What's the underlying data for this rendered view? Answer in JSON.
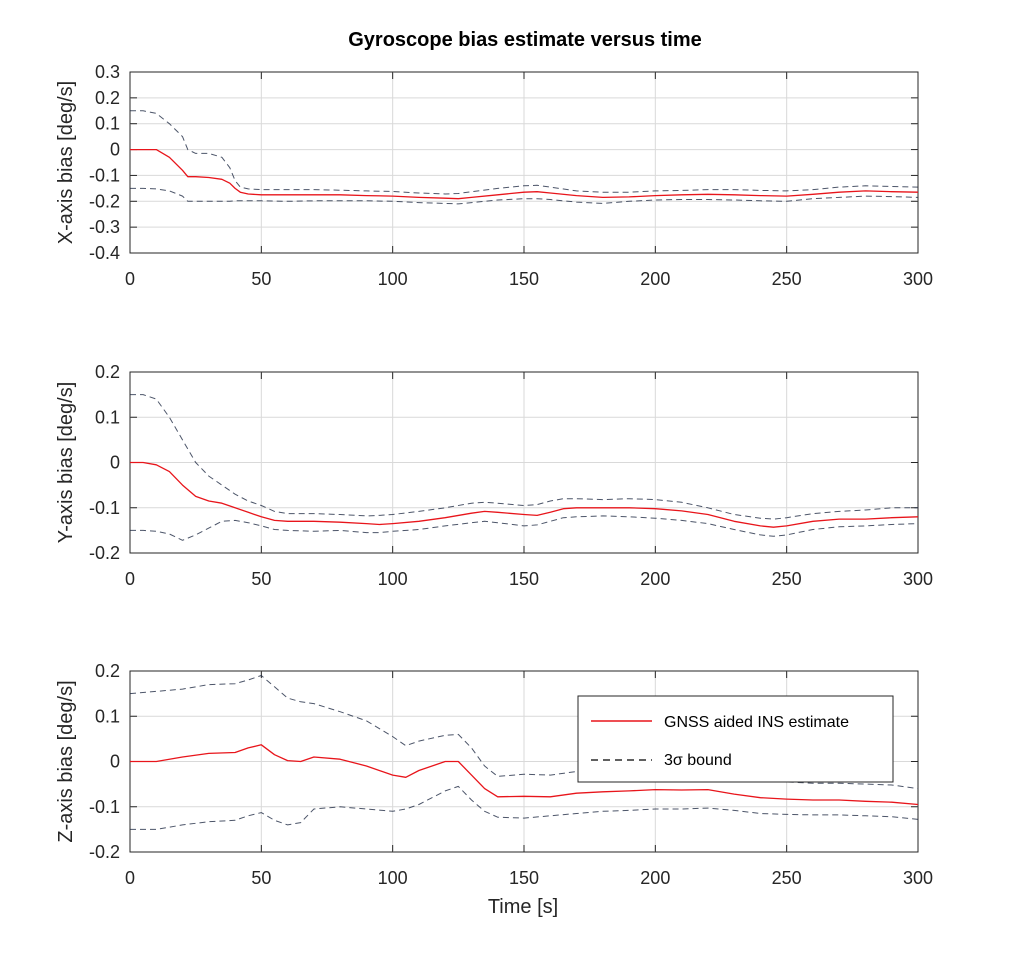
{
  "figure": {
    "title": "Gyroscope bias estimate versus time"
  },
  "legend": {
    "placement": "inside-upper-right-of-bottom-axes",
    "entries": [
      {
        "label": "GNSS aided INS estimate",
        "style": "solid",
        "color": "#e8151b"
      },
      {
        "label": "3σ bound",
        "style": "dashed",
        "color": "#000000"
      }
    ]
  },
  "colors": {
    "estimate": "#e8151b",
    "bound": "#1f2a44",
    "grid": "#d9d9d9",
    "axes": "#262626"
  },
  "chart_data": [
    {
      "type": "line",
      "id": "x-axis",
      "title": "Gyroscope bias estimate versus time",
      "xlabel": "",
      "ylabel": "X-axis bias [deg/s]",
      "xlim": [
        0,
        300
      ],
      "ylim": [
        -0.4,
        0.3
      ],
      "xticks": [
        0,
        50,
        100,
        150,
        200,
        250,
        300
      ],
      "yticks": [
        -0.4,
        -0.3,
        -0.2,
        -0.1,
        0,
        0.1,
        0.2,
        0.3
      ],
      "ytick_labels": [
        "-0.4",
        "-0.3",
        "-0.2",
        "-0.1",
        "0",
        "0.1",
        "0.2",
        "0.3"
      ],
      "grid": true,
      "x": [
        0,
        5,
        10,
        15,
        20,
        22,
        25,
        30,
        35,
        38,
        40,
        42,
        45,
        50,
        60,
        70,
        80,
        90,
        100,
        110,
        120,
        125,
        130,
        140,
        150,
        155,
        160,
        170,
        180,
        190,
        200,
        210,
        220,
        230,
        240,
        250,
        260,
        270,
        280,
        290,
        300
      ],
      "series": [
        {
          "name": "GNSS aided INS estimate",
          "role": "estimate",
          "values": [
            0,
            0,
            0,
            -0.03,
            -0.08,
            -0.105,
            -0.105,
            -0.108,
            -0.115,
            -0.13,
            -0.15,
            -0.165,
            -0.172,
            -0.175,
            -0.175,
            -0.175,
            -0.175,
            -0.178,
            -0.18,
            -0.185,
            -0.188,
            -0.19,
            -0.185,
            -0.175,
            -0.165,
            -0.163,
            -0.168,
            -0.178,
            -0.185,
            -0.183,
            -0.178,
            -0.175,
            -0.173,
            -0.175,
            -0.178,
            -0.18,
            -0.173,
            -0.165,
            -0.16,
            -0.163,
            -0.165
          ]
        },
        {
          "name": "",
          "role": "bound-upper",
          "values": [
            0.15,
            0.15,
            0.14,
            0.1,
            0.05,
            0.0,
            -0.015,
            -0.015,
            -0.03,
            -0.07,
            -0.12,
            -0.145,
            -0.152,
            -0.155,
            -0.155,
            -0.155,
            -0.157,
            -0.16,
            -0.162,
            -0.168,
            -0.172,
            -0.17,
            -0.163,
            -0.15,
            -0.14,
            -0.138,
            -0.145,
            -0.16,
            -0.165,
            -0.165,
            -0.16,
            -0.158,
            -0.155,
            -0.155,
            -0.158,
            -0.16,
            -0.155,
            -0.145,
            -0.14,
            -0.143,
            -0.145
          ]
        },
        {
          "name": "",
          "role": "bound-lower",
          "values": [
            -0.15,
            -0.15,
            -0.152,
            -0.16,
            -0.18,
            -0.2,
            -0.2,
            -0.2,
            -0.2,
            -0.2,
            -0.198,
            -0.198,
            -0.198,
            -0.198,
            -0.2,
            -0.198,
            -0.198,
            -0.198,
            -0.2,
            -0.205,
            -0.208,
            -0.21,
            -0.205,
            -0.195,
            -0.19,
            -0.19,
            -0.193,
            -0.203,
            -0.208,
            -0.2,
            -0.195,
            -0.193,
            -0.193,
            -0.195,
            -0.198,
            -0.2,
            -0.19,
            -0.185,
            -0.18,
            -0.182,
            -0.185
          ]
        }
      ]
    },
    {
      "type": "line",
      "id": "y-axis",
      "title": "",
      "xlabel": "",
      "ylabel": "Y-axis bias [deg/s]",
      "xlim": [
        0,
        300
      ],
      "ylim": [
        -0.2,
        0.2
      ],
      "xticks": [
        0,
        50,
        100,
        150,
        200,
        250,
        300
      ],
      "yticks": [
        -0.2,
        -0.1,
        0,
        0.1,
        0.2
      ],
      "ytick_labels": [
        "-0.2",
        "-0.1",
        "0",
        "0.1",
        "0.2"
      ],
      "grid": true,
      "x": [
        0,
        5,
        10,
        15,
        20,
        25,
        30,
        35,
        40,
        45,
        50,
        55,
        60,
        70,
        80,
        90,
        95,
        100,
        110,
        120,
        130,
        135,
        140,
        150,
        155,
        160,
        165,
        170,
        180,
        190,
        200,
        210,
        220,
        230,
        240,
        245,
        250,
        260,
        270,
        280,
        290,
        300
      ],
      "series": [
        {
          "name": "GNSS aided INS estimate",
          "role": "estimate",
          "values": [
            0,
            0,
            -0.005,
            -0.02,
            -0.05,
            -0.075,
            -0.085,
            -0.09,
            -0.1,
            -0.11,
            -0.12,
            -0.128,
            -0.13,
            -0.13,
            -0.132,
            -0.135,
            -0.137,
            -0.135,
            -0.13,
            -0.122,
            -0.112,
            -0.108,
            -0.11,
            -0.115,
            -0.117,
            -0.11,
            -0.102,
            -0.1,
            -0.1,
            -0.1,
            -0.102,
            -0.107,
            -0.115,
            -0.13,
            -0.14,
            -0.143,
            -0.14,
            -0.13,
            -0.125,
            -0.125,
            -0.122,
            -0.12
          ]
        },
        {
          "name": "",
          "role": "bound-upper",
          "values": [
            0.15,
            0.15,
            0.14,
            0.1,
            0.05,
            0.0,
            -0.03,
            -0.05,
            -0.07,
            -0.085,
            -0.095,
            -0.108,
            -0.113,
            -0.113,
            -0.115,
            -0.118,
            -0.117,
            -0.115,
            -0.108,
            -0.1,
            -0.09,
            -0.088,
            -0.09,
            -0.095,
            -0.093,
            -0.085,
            -0.08,
            -0.08,
            -0.082,
            -0.08,
            -0.082,
            -0.088,
            -0.1,
            -0.115,
            -0.123,
            -0.125,
            -0.122,
            -0.113,
            -0.108,
            -0.105,
            -0.1,
            -0.1
          ]
        },
        {
          "name": "",
          "role": "bound-lower",
          "values": [
            -0.15,
            -0.15,
            -0.152,
            -0.158,
            -0.172,
            -0.16,
            -0.145,
            -0.13,
            -0.128,
            -0.133,
            -0.14,
            -0.148,
            -0.15,
            -0.152,
            -0.15,
            -0.155,
            -0.155,
            -0.152,
            -0.148,
            -0.14,
            -0.133,
            -0.13,
            -0.133,
            -0.14,
            -0.138,
            -0.13,
            -0.122,
            -0.12,
            -0.118,
            -0.12,
            -0.123,
            -0.128,
            -0.135,
            -0.148,
            -0.16,
            -0.163,
            -0.16,
            -0.148,
            -0.142,
            -0.14,
            -0.137,
            -0.135
          ]
        }
      ]
    },
    {
      "type": "line",
      "id": "z-axis",
      "title": "",
      "xlabel": "Time [s]",
      "ylabel": "Z-axis bias [deg/s]",
      "xlim": [
        0,
        300
      ],
      "ylim": [
        -0.2,
        0.2
      ],
      "xticks": [
        0,
        50,
        100,
        150,
        200,
        250,
        300
      ],
      "yticks": [
        -0.2,
        -0.1,
        0,
        0.1,
        0.2
      ],
      "ytick_labels": [
        "-0.2",
        "-0.1",
        "0",
        "0.1",
        "0.2"
      ],
      "grid": true,
      "x": [
        0,
        10,
        20,
        30,
        40,
        45,
        50,
        55,
        60,
        65,
        70,
        80,
        90,
        100,
        105,
        110,
        120,
        125,
        130,
        135,
        140,
        150,
        160,
        170,
        180,
        190,
        200,
        210,
        220,
        230,
        240,
        250,
        260,
        270,
        280,
        290,
        300
      ],
      "series": [
        {
          "name": "GNSS aided INS estimate",
          "role": "estimate",
          "values": [
            0,
            0,
            0.01,
            0.018,
            0.02,
            0.03,
            0.037,
            0.015,
            0.002,
            0.0,
            0.01,
            0.005,
            -0.01,
            -0.03,
            -0.035,
            -0.02,
            0.0,
            0.0,
            -0.03,
            -0.06,
            -0.078,
            -0.077,
            -0.078,
            -0.07,
            -0.067,
            -0.065,
            -0.062,
            -0.063,
            -0.062,
            -0.072,
            -0.08,
            -0.083,
            -0.085,
            -0.085,
            -0.088,
            -0.09,
            -0.095
          ]
        },
        {
          "name": "",
          "role": "bound-upper",
          "values": [
            0.15,
            0.155,
            0.16,
            0.17,
            0.172,
            0.18,
            0.19,
            0.165,
            0.14,
            0.132,
            0.128,
            0.11,
            0.09,
            0.055,
            0.035,
            0.045,
            0.058,
            0.06,
            0.03,
            -0.01,
            -0.033,
            -0.028,
            -0.03,
            -0.022,
            -0.02,
            -0.02,
            -0.02,
            -0.018,
            -0.018,
            -0.03,
            -0.04,
            -0.045,
            -0.048,
            -0.048,
            -0.05,
            -0.052,
            -0.06
          ]
        },
        {
          "name": "",
          "role": "bound-lower",
          "values": [
            -0.15,
            -0.15,
            -0.14,
            -0.133,
            -0.13,
            -0.12,
            -0.113,
            -0.13,
            -0.14,
            -0.135,
            -0.105,
            -0.1,
            -0.105,
            -0.11,
            -0.105,
            -0.095,
            -0.065,
            -0.055,
            -0.085,
            -0.11,
            -0.123,
            -0.125,
            -0.12,
            -0.115,
            -0.11,
            -0.108,
            -0.105,
            -0.105,
            -0.103,
            -0.108,
            -0.115,
            -0.117,
            -0.118,
            -0.118,
            -0.12,
            -0.122,
            -0.128
          ]
        }
      ]
    }
  ]
}
